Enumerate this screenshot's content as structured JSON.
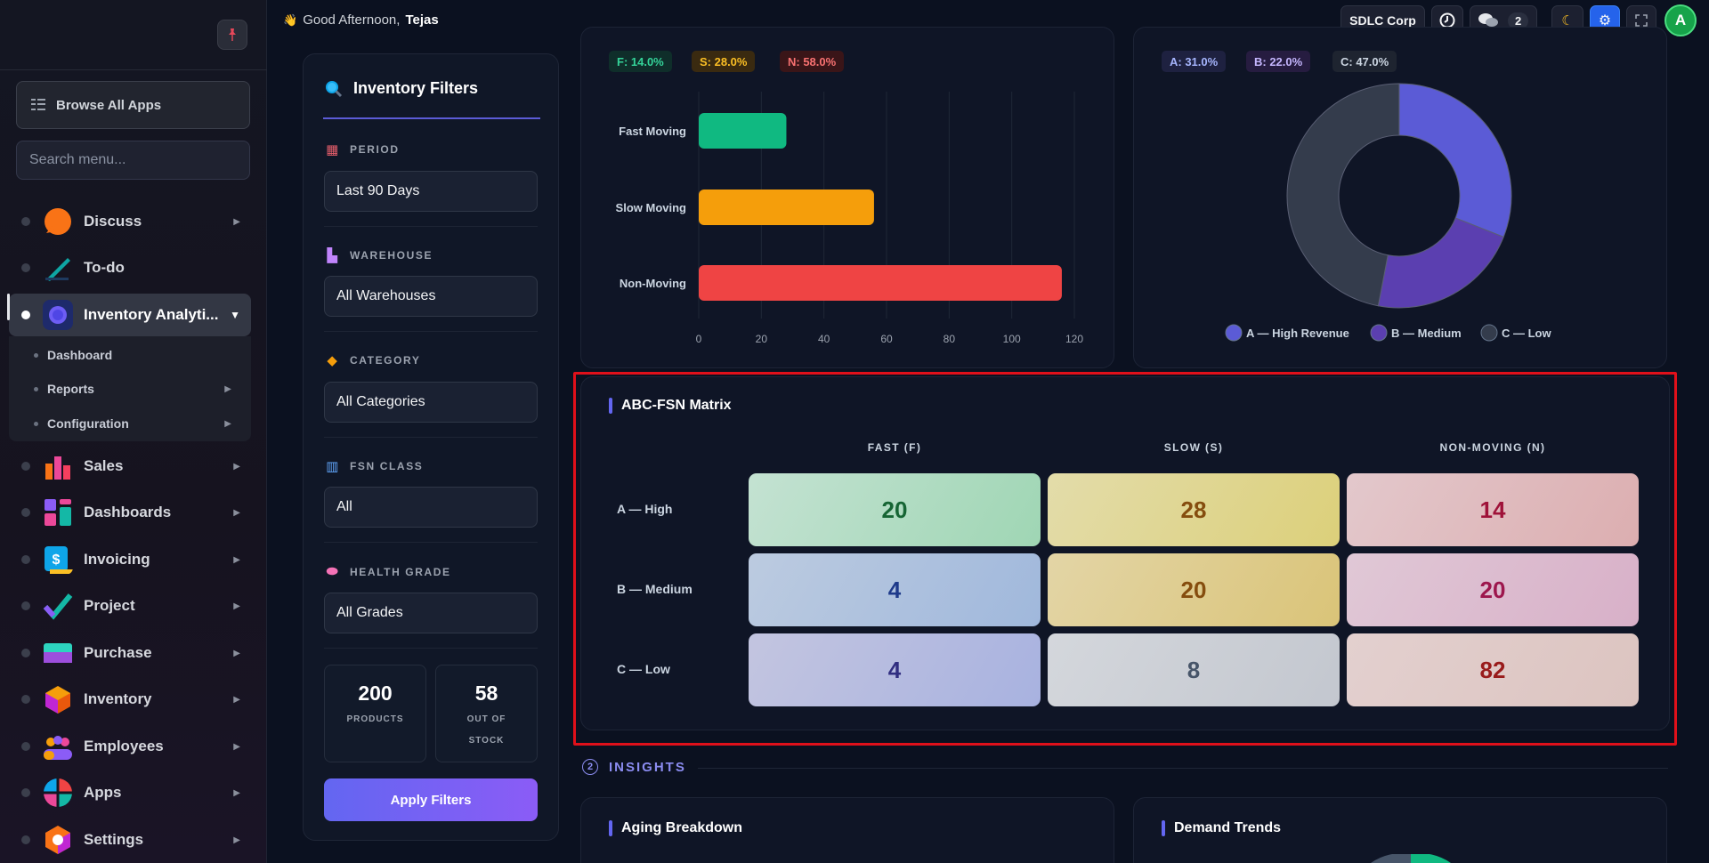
{
  "sidebar": {
    "browse_label": "Browse All Apps",
    "search_placeholder": "Search menu...",
    "items": [
      {
        "label": "Discuss"
      },
      {
        "label": "To-do"
      },
      {
        "label": "Inventory Analyti..."
      },
      {
        "label": "Sales"
      },
      {
        "label": "Dashboards"
      },
      {
        "label": "Invoicing"
      },
      {
        "label": "Project"
      },
      {
        "label": "Purchase"
      },
      {
        "label": "Inventory"
      },
      {
        "label": "Employees"
      },
      {
        "label": "Apps"
      },
      {
        "label": "Settings"
      }
    ],
    "sub_items": [
      {
        "label": "Dashboard"
      },
      {
        "label": "Reports"
      },
      {
        "label": "Configuration"
      }
    ]
  },
  "topbar": {
    "greeting_prefix": "Good Afternoon,",
    "user_name": "Tejas",
    "company": "SDLC Corp",
    "chat_count": "2",
    "avatar_letter": "A"
  },
  "filters": {
    "title": "Inventory Filters",
    "period_label": "PERIOD",
    "period_value": "Last 90 Days",
    "warehouse_label": "WAREHOUSE",
    "warehouse_value": "All Warehouses",
    "category_label": "CATEGORY",
    "category_value": "All Categories",
    "fsn_label": "FSN CLASS",
    "fsn_value": "All",
    "health_label": "HEALTH GRADE",
    "health_value": "All Grades",
    "products_count": "200",
    "products_caption": "PRODUCTS",
    "oos_count": "58",
    "oos_caption_1": "OUT OF",
    "oos_caption_2": "STOCK",
    "apply_label": "Apply Filters"
  },
  "fsn_chart": {
    "pills": [
      "F: 14.0%",
      "S: 28.0%",
      "N: 58.0%"
    ],
    "pill_colors": [
      "#10b981",
      "#f59e0b",
      "#ef4444"
    ]
  },
  "abc_chart": {
    "pills": [
      "A: 31.0%",
      "B: 22.0%",
      "C: 47.0%"
    ],
    "legend": [
      "A — High Revenue",
      "B — Medium",
      "C — Low"
    ],
    "colors": [
      "#5b5bd6",
      "#5b3fb0",
      "#343c4c"
    ]
  },
  "chart_data": [
    {
      "type": "bar",
      "orientation": "horizontal",
      "categories": [
        "Fast Moving",
        "Slow Moving",
        "Non-Moving"
      ],
      "values": [
        28,
        56,
        116
      ],
      "xlim": [
        0,
        120
      ],
      "xticks": [
        "0",
        "20",
        "40",
        "60",
        "80",
        "100",
        "120"
      ],
      "colors": [
        "#10b981",
        "#f59e0b",
        "#ef4444"
      ],
      "grid": true
    },
    {
      "type": "pie",
      "donut": true,
      "labels": [
        "A — High Revenue",
        "B — Medium",
        "C — Low"
      ],
      "values": [
        31.0,
        22.0,
        47.0
      ],
      "colors": [
        "#5b5bd6",
        "#5b3fb0",
        "#343c4c"
      ],
      "legend": "bottom"
    }
  ],
  "matrix": {
    "title": "ABC-FSN Matrix",
    "columns": [
      "FAST (F)",
      "SLOW (S)",
      "NON-MOVING (N)"
    ],
    "rows": [
      {
        "label": "A — High",
        "cells": [
          "20",
          "28",
          "14"
        ]
      },
      {
        "label": "B — Medium",
        "cells": [
          "4",
          "20",
          "20"
        ]
      },
      {
        "label": "C — Low",
        "cells": [
          "4",
          "8",
          "82"
        ]
      }
    ]
  },
  "insights": {
    "number": "2",
    "label": "INSIGHTS",
    "aging_title": "Aging Breakdown",
    "demand_title": "Demand Trends"
  }
}
